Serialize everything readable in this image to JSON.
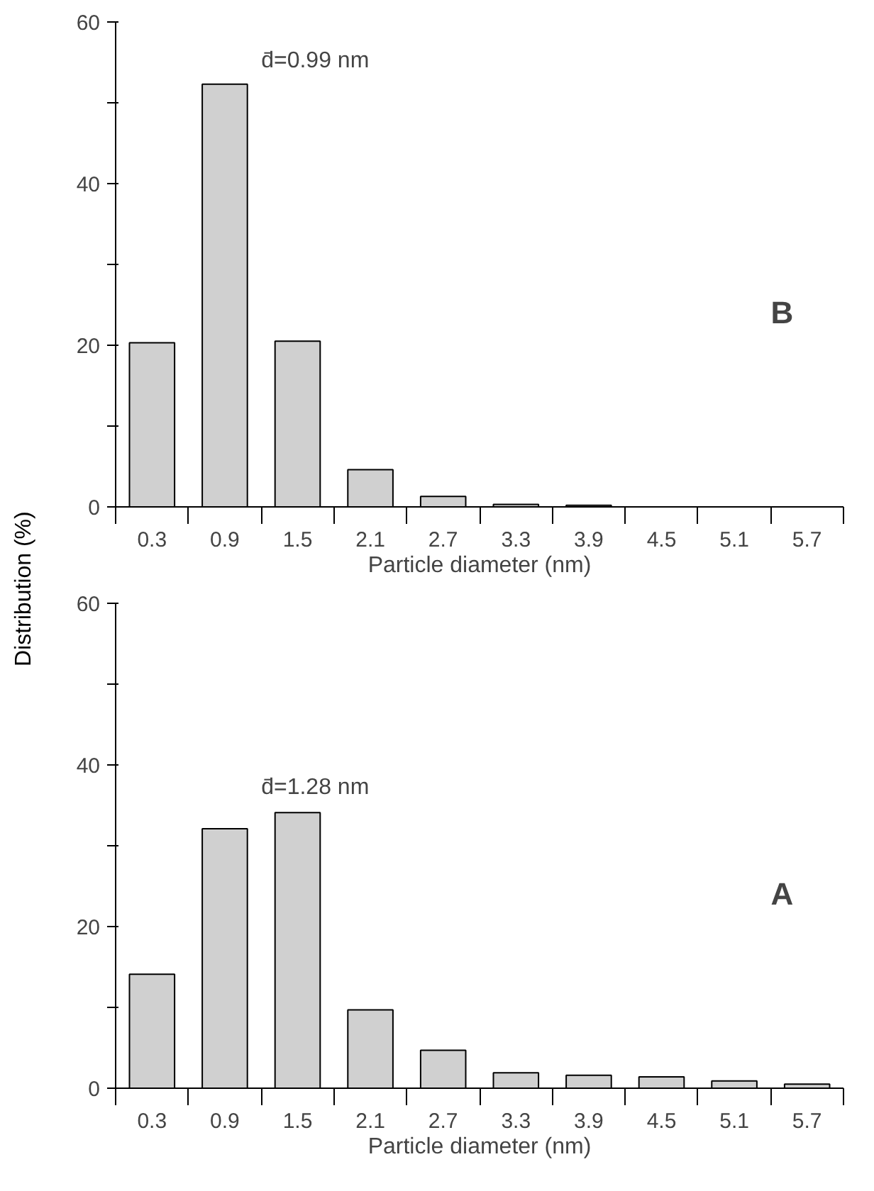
{
  "chart_data": [
    {
      "type": "bar",
      "ylabel": "Distribution (%)",
      "xlabel": "Particle diameter (nm)",
      "categories": [
        "0.3",
        "0.9",
        "1.5",
        "2.1",
        "2.7",
        "3.3",
        "3.9",
        "4.5",
        "5.1",
        "5.7"
      ],
      "values": [
        20.3,
        52.3,
        20.5,
        4.6,
        1.3,
        0.3,
        0.2,
        null,
        null,
        null
      ],
      "color": "#d0d0d0",
      "ylim": [
        0,
        60
      ],
      "yticks": [
        0,
        {
          "value": 10,
          "label": null
        },
        20,
        {
          "value": 30,
          "label": null
        },
        40,
        {
          "value": 50,
          "label": null
        },
        60
      ],
      "grid": false,
      "annotations": [
        "d̄=0.99 nm",
        "B"
      ]
    },
    {
      "type": "bar",
      "xlabel": "Particle diameter (nm)",
      "categories": [
        "0.3",
        "0.9",
        "1.5",
        "2.1",
        "2.7",
        "3.3",
        "3.9",
        "4.5",
        "5.1",
        "5.7"
      ],
      "values": [
        14.1,
        32.1,
        34.1,
        9.7,
        4.7,
        1.9,
        1.6,
        1.4,
        0.9,
        0.5
      ],
      "color": "#d0d0d0",
      "ylim": [
        0,
        60
      ],
      "yticks": [
        0,
        {
          "value": 10,
          "label": null
        },
        20,
        {
          "value": 30,
          "label": null
        },
        40,
        {
          "value": 50,
          "label": null
        },
        60
      ],
      "grid": false,
      "annotations": [
        "d̄=1.28 nm",
        "A"
      ]
    }
  ]
}
